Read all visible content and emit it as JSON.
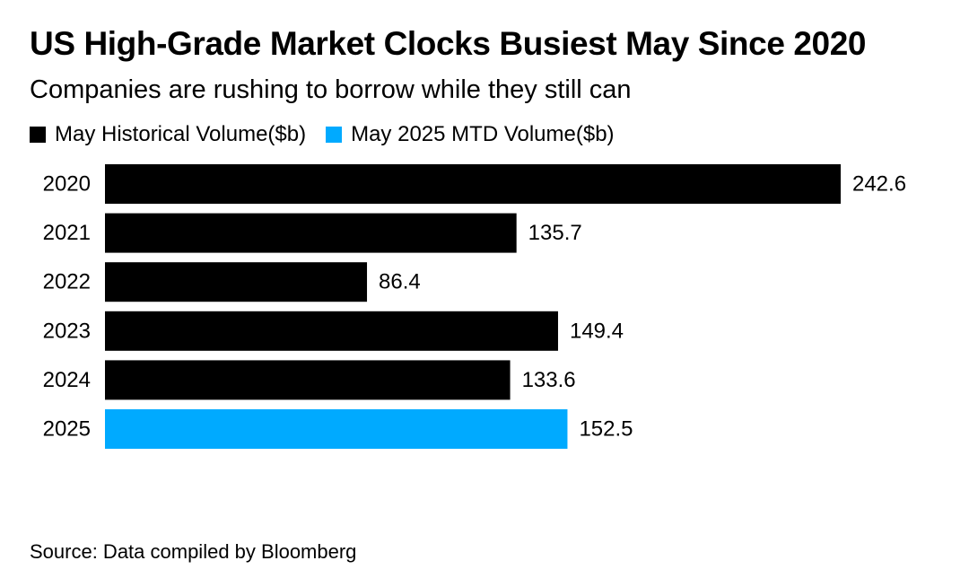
{
  "chart_data": {
    "type": "bar",
    "orientation": "horizontal",
    "title": "US High-Grade Market Clocks Busiest May Since 2020",
    "subtitle": "Companies are rushing to borrow while they still can",
    "categories": [
      "2020",
      "2021",
      "2022",
      "2023",
      "2024",
      "2025"
    ],
    "series": [
      {
        "name": "May Historical Volume($b)",
        "color": "#000000",
        "values": [
          242.6,
          135.7,
          86.4,
          149.4,
          133.6,
          null
        ]
      },
      {
        "name": "May 2025 MTD Volume($b)",
        "color": "#00aaff",
        "values": [
          null,
          null,
          null,
          null,
          null,
          152.5
        ]
      }
    ],
    "data_labels": [
      "242.6",
      "135.7",
      "86.4",
      "149.4",
      "133.6",
      "152.5"
    ],
    "xlim": [
      0,
      250
    ],
    "grid": false,
    "legend": "top-left",
    "source": "Source: Data compiled by Bloomberg"
  }
}
